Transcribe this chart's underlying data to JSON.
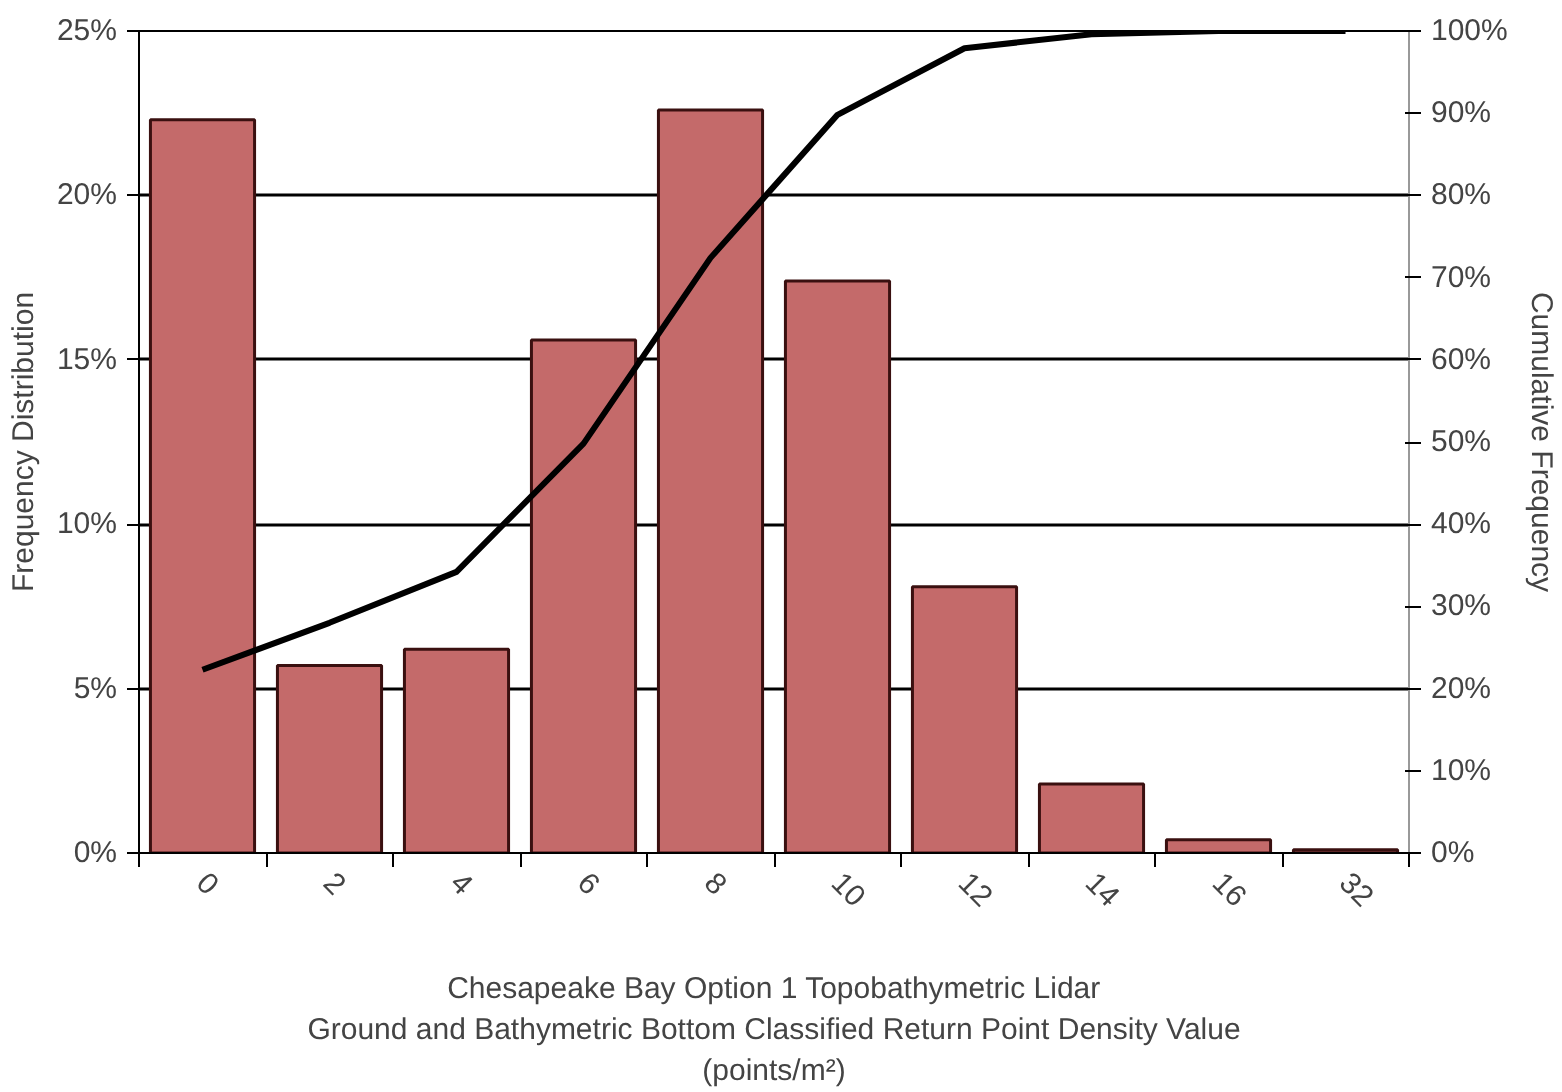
{
  "chart_data": {
    "type": "bar",
    "categories": [
      "0",
      "2",
      "4",
      "6",
      "8",
      "10",
      "12",
      "14",
      "16",
      "32"
    ],
    "series": [
      {
        "color": "#c46a6a",
        "values": [
          22.3,
          5.7,
          6.2,
          15.6,
          22.6,
          17.4,
          8.1,
          2.1,
          0.4,
          0.1
        ]
      },
      {
        "type": "line",
        "color": "#000000",
        "axis": "y2",
        "values": [
          22.3,
          28.0,
          34.2,
          49.8,
          72.4,
          89.8,
          97.9,
          99.6,
          100,
          100
        ]
      }
    ],
    "ylabel": "Frequency Distribution",
    "y2label": "Cumulative Frequency",
    "xlabel": "Chesapeake Bay Option 1 Topobathymetric Lidar\nGround and Bathymetric Bottom Classified Return Point Density Value\n(points/m²)",
    "ylim": [
      0,
      25
    ],
    "yticks": [
      {
        "value": 0,
        "label": "0%"
      },
      {
        "value": 5,
        "label": "5%"
      },
      {
        "value": 10,
        "label": "10%"
      },
      {
        "value": 15,
        "label": "15%"
      },
      {
        "value": 20,
        "label": "20%"
      },
      {
        "value": 25,
        "label": "25%"
      }
    ],
    "y2lim": [
      0,
      100
    ],
    "y2ticks": [
      {
        "value": 0,
        "label": "0%"
      },
      {
        "value": 10,
        "label": "10%"
      },
      {
        "value": 20,
        "label": "20%"
      },
      {
        "value": 30,
        "label": "30%"
      },
      {
        "value": 40,
        "label": "40%"
      },
      {
        "value": 50,
        "label": "50%"
      },
      {
        "value": 60,
        "label": "60%"
      },
      {
        "value": 70,
        "label": "70%"
      },
      {
        "value": 80,
        "label": "80%"
      },
      {
        "value": 90,
        "label": "90%"
      },
      {
        "value": 100,
        "label": "100%"
      }
    ],
    "grid": "y"
  }
}
